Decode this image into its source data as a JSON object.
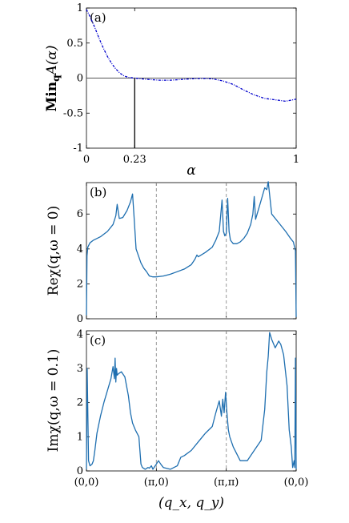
{
  "chart_data": [
    {
      "panel_label": "(a)",
      "type": "line",
      "xlabel": "α",
      "ylabel": "Min",
      "ylabel_sub": "q",
      "ylabel_tail": "A(α)",
      "xlim": [
        0,
        1
      ],
      "ylim": [
        -1,
        1
      ],
      "x_ticks": [
        "0",
        "0.23",
        "1"
      ],
      "x_tick_values": [
        0,
        0.23,
        1
      ],
      "y_ticks": [
        "1",
        "0.5",
        "0",
        "-0.5",
        "-1"
      ],
      "y_tick_values": [
        1,
        0.5,
        0,
        -0.5,
        -1
      ],
      "zero_line": 0,
      "marker_line_x": 0.23,
      "line_color": "#0000cc",
      "line_style": "dash-dot",
      "series": [
        {
          "x": [
            0,
            0.02,
            0.04,
            0.06,
            0.08,
            0.1,
            0.12,
            0.14,
            0.16,
            0.18,
            0.2,
            0.22,
            0.23,
            0.26,
            0.3,
            0.35,
            0.4,
            0.45,
            0.5,
            0.55,
            0.6,
            0.65,
            0.7,
            0.75,
            0.8,
            0.85,
            0.9,
            0.95,
            1.0
          ],
          "y": [
            0.98,
            0.86,
            0.72,
            0.57,
            0.43,
            0.31,
            0.21,
            0.13,
            0.07,
            0.03,
            0.01,
            0.003,
            0.0,
            -0.01,
            -0.02,
            -0.03,
            -0.03,
            -0.02,
            -0.01,
            -0.005,
            -0.01,
            -0.04,
            -0.09,
            -0.17,
            -0.24,
            -0.29,
            -0.31,
            -0.33,
            -0.3
          ]
        }
      ]
    },
    {
      "panel_label": "(b)",
      "type": "line",
      "ylabel": "Reχ(q,ω = 0)",
      "ylim": [
        0,
        7.8
      ],
      "x_tick_values": [
        0,
        1,
        2,
        3
      ],
      "y_ticks": [
        "0",
        "2",
        "4",
        "6"
      ],
      "y_tick_values": [
        0,
        2,
        4,
        6
      ],
      "vlines": [
        1,
        2
      ],
      "line_color": "#1f6fb0",
      "series": [
        {
          "x": [
            0,
            0.008,
            0.02,
            0.05,
            0.1,
            0.2,
            0.3,
            0.38,
            0.42,
            0.44,
            0.47,
            0.52,
            0.58,
            0.63,
            0.66,
            0.68,
            0.71,
            0.78,
            0.82,
            0.86,
            0.9,
            0.95,
            1.0,
            1.1,
            1.2,
            1.3,
            1.4,
            1.5,
            1.55,
            1.58,
            1.6,
            1.7,
            1.8,
            1.85,
            1.9,
            1.94,
            1.96,
            1.98,
            2.0,
            2.02,
            2.04,
            2.06,
            2.1,
            2.15,
            2.2,
            2.25,
            2.3,
            2.35,
            2.38,
            2.4,
            2.42,
            2.5,
            2.55,
            2.58,
            2.6,
            2.65,
            2.75,
            2.85,
            2.92,
            2.96,
            2.99,
            3.0
          ],
          "y": [
            0.2,
            3.6,
            4.1,
            4.35,
            4.5,
            4.7,
            5.0,
            5.4,
            5.9,
            6.55,
            5.75,
            5.8,
            6.2,
            6.7,
            7.15,
            5.9,
            4.0,
            3.2,
            2.9,
            2.7,
            2.45,
            2.4,
            2.4,
            2.45,
            2.55,
            2.7,
            2.85,
            3.1,
            3.4,
            3.65,
            3.55,
            3.8,
            4.1,
            4.5,
            5.0,
            6.8,
            5.0,
            4.75,
            4.9,
            6.9,
            5.0,
            4.5,
            4.3,
            4.3,
            4.4,
            4.6,
            4.9,
            5.4,
            6.0,
            7.0,
            5.7,
            6.8,
            7.5,
            7.4,
            7.85,
            6.0,
            5.5,
            5.0,
            4.6,
            4.4,
            3.9,
            0.1
          ]
        }
      ]
    },
    {
      "panel_label": "(c)",
      "type": "line",
      "xlabel": "(q_x, q_y)",
      "ylabel": "Imχ(q,ω = 0.1)",
      "ylim": [
        0,
        4.1
      ],
      "x_ticks": [
        "(0,0)",
        "(π,0)",
        "(π,π)",
        "(0,0)"
      ],
      "x_tick_values": [
        0,
        1,
        2,
        3
      ],
      "y_ticks": [
        "0",
        "1",
        "2",
        "3",
        "4"
      ],
      "y_tick_values": [
        0,
        1,
        2,
        3,
        4
      ],
      "vlines": [
        1,
        2
      ],
      "line_color": "#1f6fb0",
      "series": [
        {
          "x": [
            0,
            0.01,
            0.03,
            0.05,
            0.08,
            0.1,
            0.12,
            0.15,
            0.2,
            0.25,
            0.3,
            0.35,
            0.38,
            0.4,
            0.41,
            0.42,
            0.43,
            0.44,
            0.46,
            0.5,
            0.55,
            0.6,
            0.63,
            0.66,
            0.7,
            0.75,
            0.78,
            0.8,
            0.84,
            0.88,
            0.9,
            0.93,
            0.95,
            1.0,
            1.03,
            1.07,
            1.1,
            1.2,
            1.3,
            1.35,
            1.4,
            1.5,
            1.6,
            1.7,
            1.8,
            1.85,
            1.9,
            1.93,
            1.95,
            1.97,
            1.99,
            2.01,
            2.03,
            2.05,
            2.1,
            2.2,
            2.3,
            2.4,
            2.5,
            2.55,
            2.58,
            2.6,
            2.62,
            2.65,
            2.7,
            2.75,
            2.78,
            2.82,
            2.87,
            2.9,
            2.93,
            2.95,
            2.97,
            2.98,
            2.99,
            3.0
          ],
          "y": [
            0.05,
            3.0,
            0.3,
            0.15,
            0.2,
            0.3,
            0.6,
            1.1,
            1.6,
            2.0,
            2.35,
            2.7,
            3.05,
            2.7,
            3.3,
            2.6,
            3.0,
            2.8,
            2.85,
            2.9,
            2.75,
            2.2,
            1.7,
            1.4,
            1.2,
            1.0,
            0.2,
            0.1,
            0.05,
            0.1,
            0.08,
            0.15,
            0.05,
            0.2,
            0.3,
            0.18,
            0.1,
            0.05,
            0.15,
            0.4,
            0.45,
            0.6,
            0.85,
            1.1,
            1.3,
            1.7,
            2.05,
            1.6,
            2.1,
            1.7,
            2.3,
            1.7,
            1.2,
            1.0,
            0.7,
            0.3,
            0.3,
            0.6,
            0.9,
            1.8,
            2.9,
            3.35,
            4.05,
            3.85,
            3.6,
            3.8,
            3.7,
            3.4,
            2.5,
            1.2,
            0.7,
            0.1,
            0.3,
            0.1,
            3.3,
            0.05
          ]
        }
      ]
    }
  ]
}
